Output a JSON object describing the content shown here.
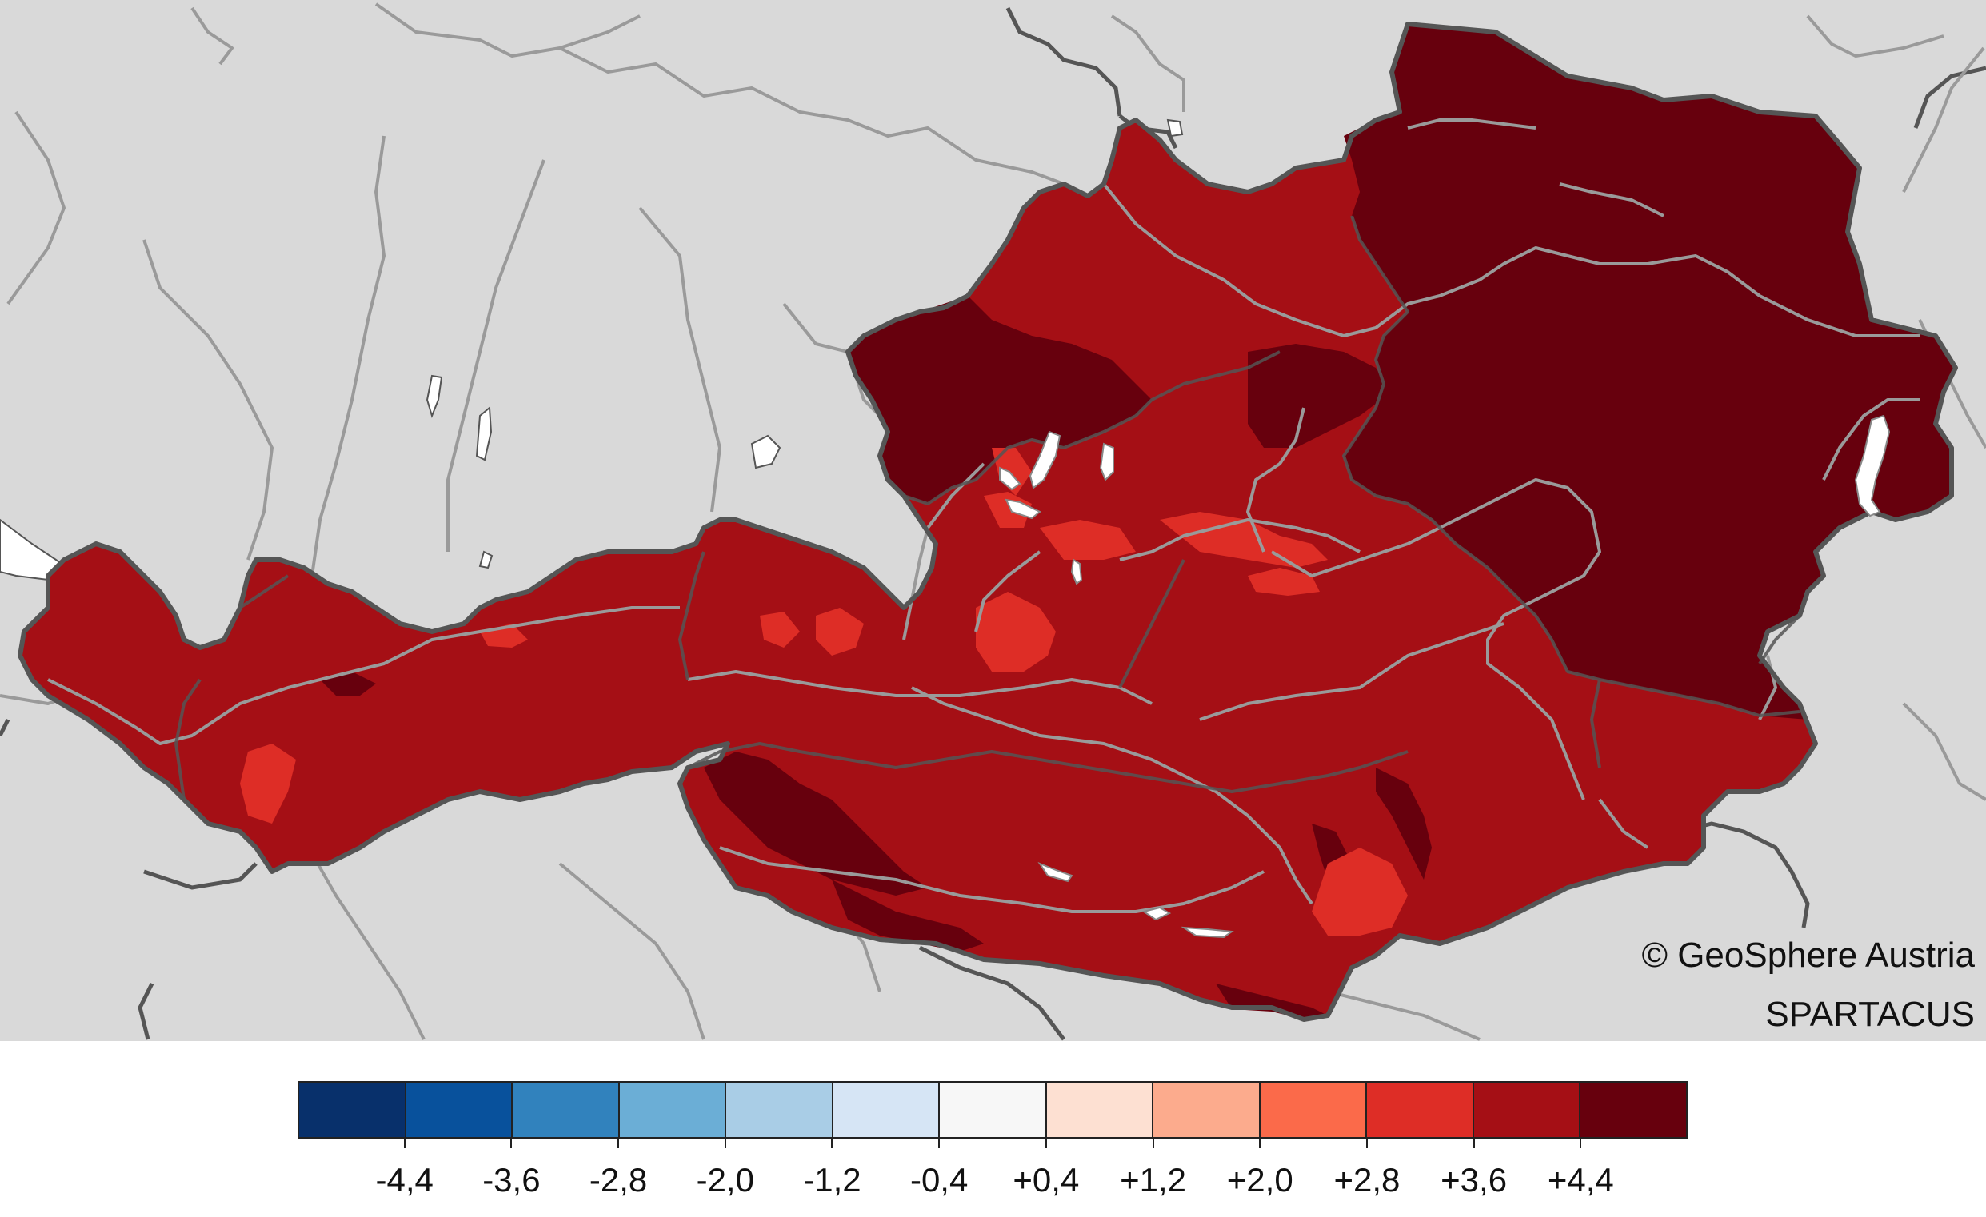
{
  "map": {
    "region": "Austria",
    "background_color": "#d9d9d9",
    "border_color": "#555555",
    "river_color": "#9a9a9a",
    "lake_color": "#ffffff"
  },
  "credits": {
    "organisation": "© GeoSphere Austria",
    "dataset": "SPARTACUS"
  },
  "legend": {
    "colors": [
      "#08306b",
      "#08519c",
      "#3182bd",
      "#6baed6",
      "#a9cde6",
      "#d6e5f5",
      "#f7f7f7",
      "#fde0d2",
      "#fcab8d",
      "#fb6a4a",
      "#de2d26",
      "#a50f15",
      "#67000d"
    ],
    "ticks": [
      "-4,4",
      "-3,6",
      "-2,8",
      "-2,0",
      "-1,2",
      "-0,4",
      "+0,4",
      "+1,2",
      "+2,0",
      "+2,8",
      "+3,6",
      "+4,4"
    ]
  }
}
